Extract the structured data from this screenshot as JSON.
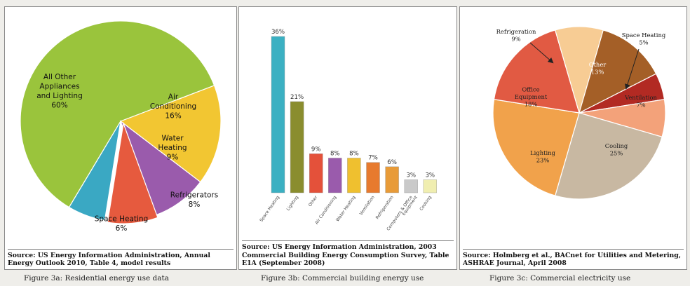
{
  "chart_data": [
    {
      "type": "pie",
      "categories": [
        "All Other Appliances and Lighting",
        "Air Conditioning",
        "Water Heating",
        "Refrigerators",
        "Space Heating"
      ],
      "values": [
        60,
        16,
        9,
        8,
        6
      ],
      "colors": [
        "#9ac43c",
        "#f2c632",
        "#9a5bac",
        "#e65a3e",
        "#3aa8c3"
      ],
      "labels": [
        {
          "lines": [
            "All Other",
            "Appliances",
            "and Lighting",
            "60%"
          ]
        },
        {
          "lines": [
            "Air",
            "Conditioning",
            "16%"
          ]
        },
        {
          "lines": [
            "Water",
            "Heating",
            "9%"
          ]
        },
        {
          "lines": [
            "Refrigerators",
            "8%"
          ]
        },
        {
          "lines": [
            "Space Heating",
            "6%"
          ]
        }
      ],
      "source": "Source: US Energy Information Administration, Annual Energy Outlook 2010, Table 4, model results",
      "caption": "Figure 3a: Residential energy use data"
    },
    {
      "type": "bar",
      "categories": [
        "Space Heating",
        "Lighting",
        "Other",
        "Air Conditioning",
        "Water Heating",
        "Ventilation",
        "Refrigeration",
        "Computers & Office Equipment",
        "Cooking"
      ],
      "tick_lines": [
        [
          "Space Heating"
        ],
        [
          "Lighting"
        ],
        [
          "Other"
        ],
        [
          "Air Conditioning"
        ],
        [
          "Water Heating"
        ],
        [
          "Ventilation"
        ],
        [
          "Refrigeration"
        ],
        [
          "Computers & Office",
          "Equipment"
        ],
        [
          "Cooking"
        ]
      ],
      "values": [
        36,
        21,
        9,
        8,
        8,
        7,
        6,
        3,
        3
      ],
      "value_labels": [
        "36%",
        "21%",
        "9%",
        "8%",
        "8%",
        "7%",
        "6%",
        "3%",
        "3%"
      ],
      "colors": [
        "#3bb0c2",
        "#8a8d2e",
        "#e4513a",
        "#9a5bac",
        "#efc02f",
        "#e77a2e",
        "#e89b38",
        "#c9c9c9",
        "#f0eeb0"
      ],
      "ylim": [
        0,
        36
      ],
      "source": "Source: US Energy Information Administration, 2003 Commercial Building Energy Consumption Survey, Table E1A (September 2008)",
      "caption": "Figure 3b: Commercial building energy use"
    },
    {
      "type": "pie",
      "categories": [
        "Space Heating",
        "Ventilation",
        "Cooling",
        "Lighting",
        "Office Equipment",
        "Refrigeration",
        "Other"
      ],
      "values": [
        5,
        7,
        25,
        23,
        18,
        9,
        13
      ],
      "colors": [
        "#b22a23",
        "#f3a27a",
        "#c8b8a2",
        "#f1a24b",
        "#e15a43",
        "#f7cc94",
        "#a45f27"
      ],
      "labels": [
        {
          "lines": [
            "Space Heating",
            "5%"
          ]
        },
        {
          "lines": [
            "Ventilation",
            "7%"
          ]
        },
        {
          "lines": [
            "Cooling",
            "25%"
          ]
        },
        {
          "lines": [
            "Lighting",
            "23%"
          ]
        },
        {
          "lines": [
            "Office",
            "Equipment",
            "18%"
          ]
        },
        {
          "lines": [
            "Refrigeration",
            "9%"
          ]
        },
        {
          "lines": [
            "Other",
            "13%"
          ]
        }
      ],
      "source": "Source: Holmberg et al., BACnet for Utilities and Metering, ASHRAE Journal, April 2008",
      "caption": "Figure 3c: Commercial electricity use"
    }
  ]
}
